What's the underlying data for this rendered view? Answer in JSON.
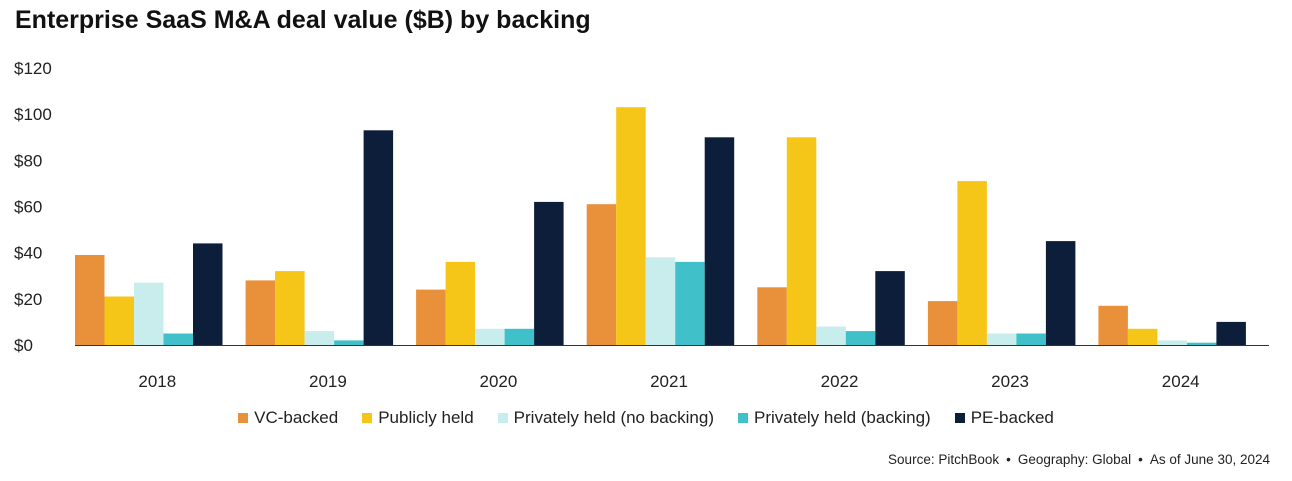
{
  "chart_data": {
    "type": "bar",
    "title": "Enterprise SaaS M&A deal value ($B) by backing",
    "categories": [
      "2018",
      "2019",
      "2020",
      "2021",
      "2022",
      "2023",
      "2024"
    ],
    "series": [
      {
        "name": "VC-backed",
        "color": "#E8913A",
        "values": [
          39,
          28,
          24,
          61,
          25,
          19,
          17
        ]
      },
      {
        "name": "Publicly held",
        "color": "#F5C518",
        "values": [
          21,
          32,
          36,
          103,
          90,
          71,
          7
        ]
      },
      {
        "name": "Privately held (no backing)",
        "color": "#C8EDEC",
        "values": [
          27,
          6,
          7,
          38,
          8,
          5,
          2
        ]
      },
      {
        "name": "Privately held (backing)",
        "color": "#40C1C9",
        "values": [
          5,
          2,
          7,
          36,
          6,
          5,
          1
        ]
      },
      {
        "name": "PE-backed",
        "color": "#0D1E3B",
        "values": [
          44,
          93,
          62,
          90,
          32,
          45,
          10
        ]
      }
    ],
    "yticks": [
      "$0",
      "$20",
      "$40",
      "$60",
      "$80",
      "$100",
      "$120"
    ],
    "ylim": [
      0,
      120
    ],
    "grid": false,
    "legend_position": "bottom"
  },
  "footer": {
    "source": "Source: PitchBook",
    "geography": "Geography: Global",
    "as_of": "As of June 30, 2024",
    "separator": "•"
  }
}
